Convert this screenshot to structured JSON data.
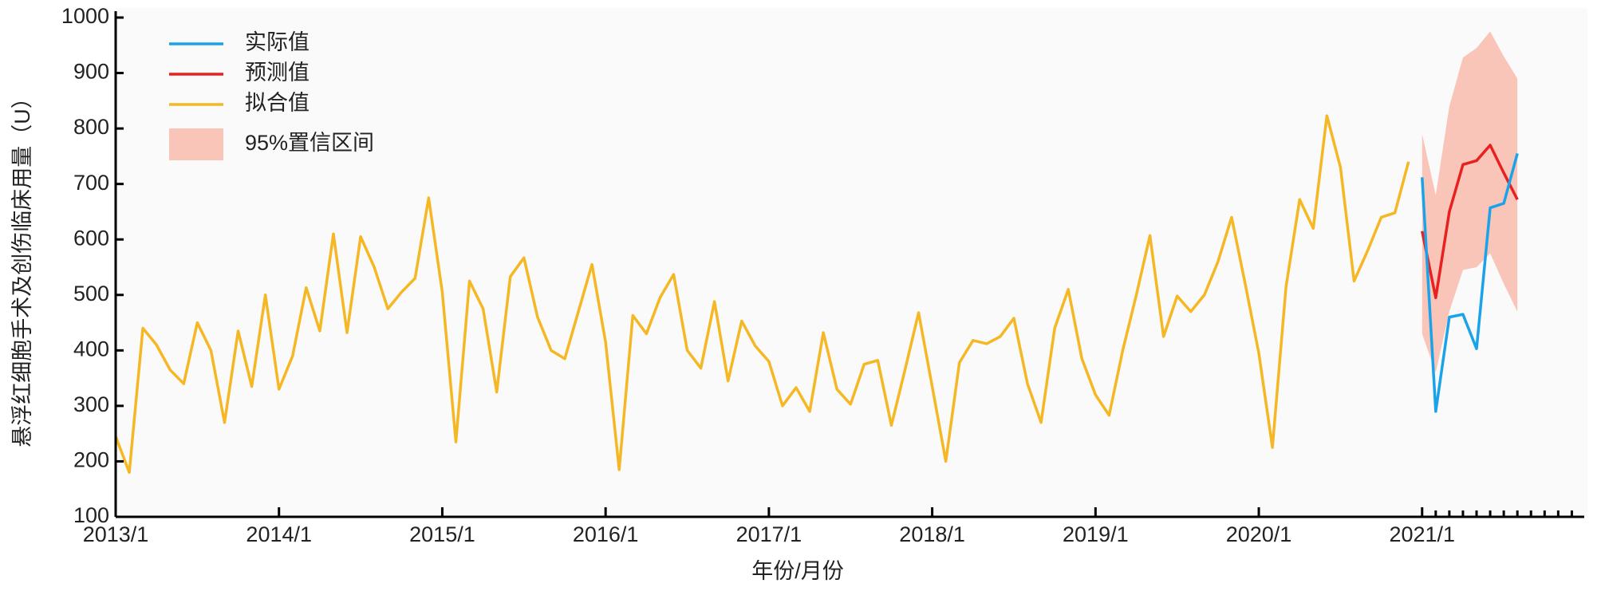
{
  "chart_data": {
    "type": "line",
    "x_label": "年份/月份",
    "y_label": "悬浮红细胞手术及创伤临床用量（U）",
    "x": [
      "2013/1",
      "2013/2",
      "2013/3",
      "2013/4",
      "2013/5",
      "2013/6",
      "2013/7",
      "2013/8",
      "2013/9",
      "2013/10",
      "2013/11",
      "2013/12",
      "2014/1",
      "2014/2",
      "2014/3",
      "2014/4",
      "2014/5",
      "2014/6",
      "2014/7",
      "2014/8",
      "2014/9",
      "2014/10",
      "2014/11",
      "2014/12",
      "2015/1",
      "2015/2",
      "2015/3",
      "2015/4",
      "2015/5",
      "2015/6",
      "2015/7",
      "2015/8",
      "2015/9",
      "2015/10",
      "2015/11",
      "2015/12",
      "2016/1",
      "2016/2",
      "2016/3",
      "2016/4",
      "2016/5",
      "2016/6",
      "2016/7",
      "2016/8",
      "2016/9",
      "2016/10",
      "2016/11",
      "2016/12",
      "2017/1",
      "2017/2",
      "2017/3",
      "2017/4",
      "2017/5",
      "2017/6",
      "2017/7",
      "2017/8",
      "2017/9",
      "2017/10",
      "2017/11",
      "2017/12",
      "2018/1",
      "2018/2",
      "2018/3",
      "2018/4",
      "2018/5",
      "2018/6",
      "2018/7",
      "2018/8",
      "2018/9",
      "2018/10",
      "2018/11",
      "2018/12",
      "2019/1",
      "2019/2",
      "2019/3",
      "2019/4",
      "2019/5",
      "2019/6",
      "2019/7",
      "2019/8",
      "2019/9",
      "2019/10",
      "2019/11",
      "2019/12",
      "2020/1",
      "2020/2",
      "2020/3",
      "2020/4",
      "2020/5",
      "2020/6",
      "2020/7",
      "2020/8",
      "2020/9",
      "2020/10",
      "2020/11",
      "2020/12",
      "2021/1",
      "2021/2",
      "2021/3",
      "2021/4",
      "2021/5",
      "2021/6",
      "2021/7",
      "2021/8",
      "2021/9",
      "2021/10",
      "2021/11",
      "2021/12"
    ],
    "xticks": [
      "2013/1",
      "2014/1",
      "2015/1",
      "2016/1",
      "2017/1",
      "2018/1",
      "2019/1",
      "2020/1",
      "2021/1"
    ],
    "ylim": [
      100,
      1000
    ],
    "yticks": [
      100,
      200,
      300,
      400,
      500,
      600,
      700,
      800,
      900,
      1000
    ],
    "series": [
      {
        "name": "实际值",
        "color": "#1aa3e8",
        "values": [
          null,
          null,
          null,
          null,
          null,
          null,
          null,
          null,
          null,
          null,
          null,
          null,
          null,
          null,
          null,
          null,
          null,
          null,
          null,
          null,
          null,
          null,
          null,
          null,
          null,
          null,
          null,
          null,
          null,
          null,
          null,
          null,
          null,
          null,
          null,
          null,
          null,
          null,
          null,
          null,
          null,
          null,
          null,
          null,
          null,
          null,
          null,
          null,
          null,
          null,
          null,
          null,
          null,
          null,
          null,
          null,
          null,
          null,
          null,
          null,
          null,
          null,
          null,
          null,
          null,
          null,
          null,
          null,
          null,
          null,
          null,
          null,
          null,
          null,
          null,
          null,
          null,
          null,
          null,
          null,
          null,
          null,
          null,
          null,
          null,
          null,
          null,
          null,
          null,
          null,
          null,
          null,
          null,
          null,
          null,
          null,
          712,
          290,
          460,
          465,
          403,
          657,
          665,
          755,
          null,
          null,
          null,
          null
        ]
      },
      {
        "name": "预测值",
        "color": "#e8201f",
        "values": [
          null,
          null,
          null,
          null,
          null,
          null,
          null,
          null,
          null,
          null,
          null,
          null,
          null,
          null,
          null,
          null,
          null,
          null,
          null,
          null,
          null,
          null,
          null,
          null,
          null,
          null,
          null,
          null,
          null,
          null,
          null,
          null,
          null,
          null,
          null,
          null,
          null,
          null,
          null,
          null,
          null,
          null,
          null,
          null,
          null,
          null,
          null,
          null,
          null,
          null,
          null,
          null,
          null,
          null,
          null,
          null,
          null,
          null,
          null,
          null,
          null,
          null,
          null,
          null,
          null,
          null,
          null,
          null,
          null,
          null,
          null,
          null,
          null,
          null,
          null,
          null,
          null,
          null,
          null,
          null,
          null,
          null,
          null,
          null,
          null,
          null,
          null,
          null,
          null,
          null,
          null,
          null,
          null,
          null,
          null,
          null,
          615,
          495,
          650,
          735,
          742,
          770,
          720,
          672,
          null,
          null,
          null,
          null
        ]
      },
      {
        "name": "拟合值",
        "color": "#f5b824",
        "values": [
          245,
          180,
          440,
          410,
          365,
          340,
          450,
          400,
          270,
          435,
          335,
          500,
          330,
          390,
          513,
          435,
          610,
          432,
          605,
          550,
          475,
          505,
          530,
          675,
          505,
          235,
          525,
          475,
          325,
          533,
          567,
          460,
          400,
          385,
          470,
          555,
          415,
          185,
          463,
          430,
          495,
          537,
          400,
          368,
          488,
          345,
          453,
          408,
          380,
          300,
          333,
          290,
          432,
          330,
          303,
          375,
          382,
          265,
          365,
          468,
          335,
          200,
          378,
          418,
          412,
          425,
          458,
          340,
          270,
          440,
          510,
          385,
          320,
          283,
          400,
          500,
          607,
          425,
          498,
          470,
          500,
          560,
          640,
          520,
          395,
          225,
          515,
          672,
          620,
          823,
          730,
          525,
          580,
          640,
          648,
          740,
          null,
          null,
          null,
          null,
          null,
          null,
          null,
          null,
          null,
          null,
          null,
          null
        ]
      }
    ],
    "band": {
      "name": "95%置信区间",
      "color": "#f9c5b9",
      "lower": [
        null,
        null,
        null,
        null,
        null,
        null,
        null,
        null,
        null,
        null,
        null,
        null,
        null,
        null,
        null,
        null,
        null,
        null,
        null,
        null,
        null,
        null,
        null,
        null,
        null,
        null,
        null,
        null,
        null,
        null,
        null,
        null,
        null,
        null,
        null,
        null,
        null,
        null,
        null,
        null,
        null,
        null,
        null,
        null,
        null,
        null,
        null,
        null,
        null,
        null,
        null,
        null,
        null,
        null,
        null,
        null,
        null,
        null,
        null,
        null,
        null,
        null,
        null,
        null,
        null,
        null,
        null,
        null,
        null,
        null,
        null,
        null,
        null,
        null,
        null,
        null,
        null,
        null,
        null,
        null,
        null,
        null,
        null,
        null,
        null,
        null,
        null,
        null,
        null,
        null,
        null,
        null,
        null,
        null,
        null,
        null,
        430,
        360,
        470,
        545,
        550,
        575,
        520,
        470,
        null,
        null,
        null,
        null
      ],
      "upper": [
        null,
        null,
        null,
        null,
        null,
        null,
        null,
        null,
        null,
        null,
        null,
        null,
        null,
        null,
        null,
        null,
        null,
        null,
        null,
        null,
        null,
        null,
        null,
        null,
        null,
        null,
        null,
        null,
        null,
        null,
        null,
        null,
        null,
        null,
        null,
        null,
        null,
        null,
        null,
        null,
        null,
        null,
        null,
        null,
        null,
        null,
        null,
        null,
        null,
        null,
        null,
        null,
        null,
        null,
        null,
        null,
        null,
        null,
        null,
        null,
        null,
        null,
        null,
        null,
        null,
        null,
        null,
        null,
        null,
        null,
        null,
        null,
        null,
        null,
        null,
        null,
        null,
        null,
        null,
        null,
        null,
        null,
        null,
        null,
        null,
        null,
        null,
        null,
        null,
        null,
        null,
        null,
        null,
        null,
        null,
        null,
        790,
        680,
        840,
        928,
        945,
        975,
        930,
        890,
        null,
        null,
        null,
        null
      ]
    }
  }
}
